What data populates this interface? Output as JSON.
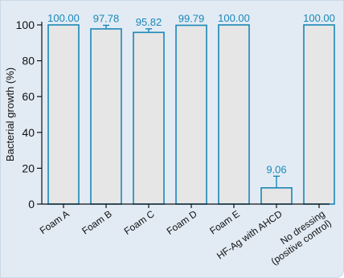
{
  "chart_data": {
    "type": "bar",
    "title": "",
    "xlabel": "",
    "ylabel": "Bacterial growth (%)",
    "ylim": [
      0,
      100
    ],
    "yticks": [
      0,
      20,
      40,
      60,
      80,
      100
    ],
    "grid": false,
    "categories": [
      [
        "Foam A"
      ],
      [
        "Foam B"
      ],
      [
        "Foam C"
      ],
      [
        "Foam D"
      ],
      [
        "Foam E"
      ],
      [
        "HF-Ag with AHCD"
      ],
      [
        "No dressing",
        "(positive control)"
      ]
    ],
    "values": [
      100.0,
      97.78,
      95.82,
      99.79,
      100.0,
      9.06,
      100.0
    ],
    "value_labels": [
      "100.00",
      "97.78",
      "95.82",
      "99.79",
      "100.00",
      "9.06",
      "100.00"
    ],
    "error_bars": [
      0,
      2,
      2,
      0,
      0,
      6.5,
      0
    ],
    "colors": {
      "bar_fill": "#e6e6e6",
      "bar_stroke": "#1a87b8",
      "value_label": "#1a87b8",
      "axis": "#111111",
      "background": "#e2ebf4"
    }
  }
}
